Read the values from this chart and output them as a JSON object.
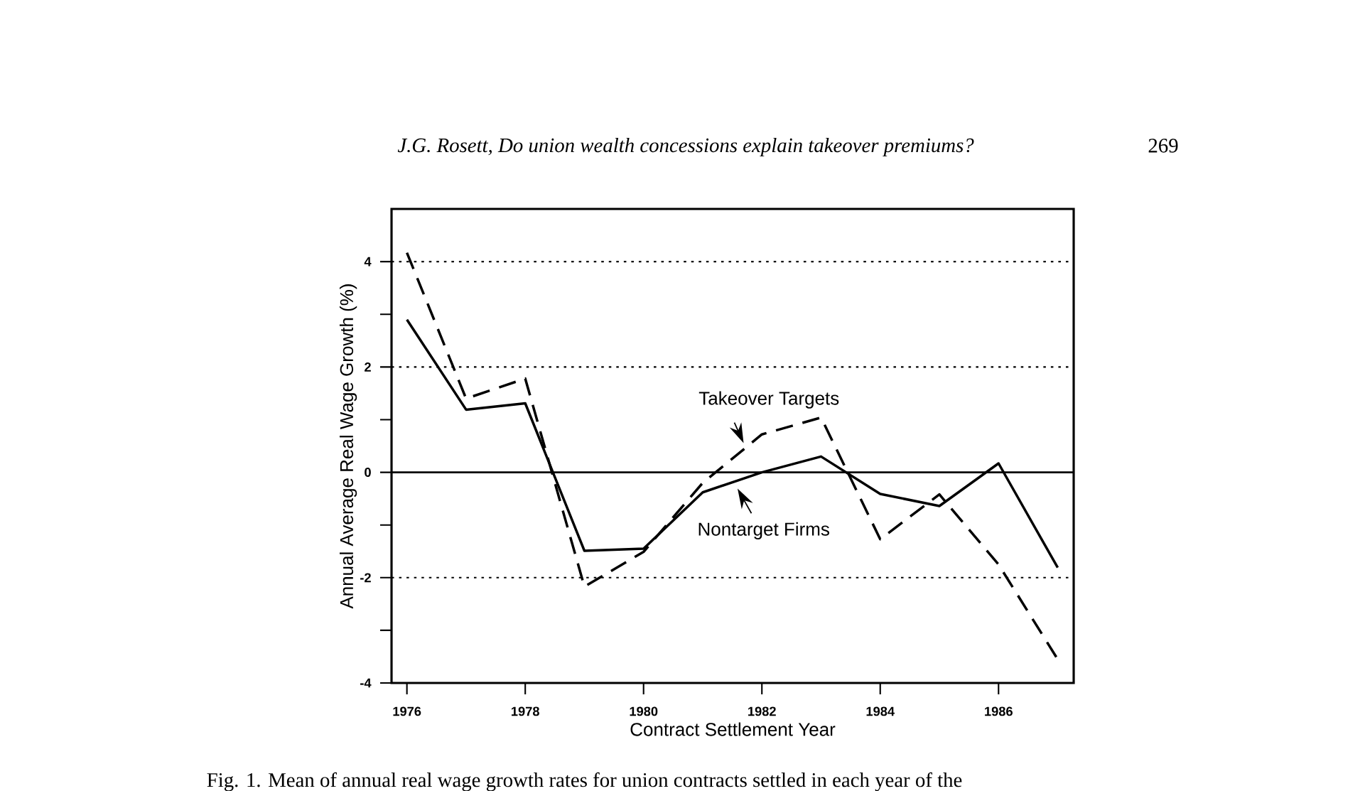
{
  "chart_data": {
    "type": "line",
    "title": "*J.G. Rosett, Do union wealth concessions explain takeover premiums?*",
    "xlabel": "Contract Settlement Year",
    "ylabel": "Annual Average Real Wage Growth (%)",
    "x": [
      1976,
      1977,
      1978,
      1979,
      1980,
      1981,
      1982,
      1983,
      1984,
      1985,
      1986,
      1987
    ],
    "series": [
      {
        "name": "Takeover Targets",
        "color": "#000000",
        "line_style": "dashed",
        "values": [
          4.17,
          1.4,
          1.78,
          -2.17,
          -1.51,
          -0.2,
          0.72,
          1.04,
          -1.27,
          -0.42,
          -1.75,
          -3.55
        ]
      },
      {
        "name": "Nontarget Firms",
        "color": "#000000",
        "line_style": "solid",
        "values": [
          2.9,
          1.19,
          1.31,
          -1.49,
          -1.45,
          -0.38,
          0.0,
          0.3,
          -0.41,
          -0.64,
          0.17,
          -1.81
        ]
      }
    ],
    "xlim": [
      1975.74,
      1987.27
    ],
    "ylim": [
      -4,
      5
    ],
    "xticks": [
      1976,
      1978,
      1980,
      1982,
      1984,
      1986
    ],
    "yticks": [
      -4,
      {
        "value": -3,
        "label": null
      },
      -2,
      {
        "value": -1,
        "label": null
      },
      0,
      {
        "value": 1,
        "label": null
      },
      2,
      {
        "value": 3,
        "label": null
      },
      4
    ],
    "ref_lines": [
      {
        "axis": "y",
        "value": 4,
        "line_style": "dotted"
      },
      {
        "axis": "y",
        "value": 2,
        "line_style": "dotted"
      },
      {
        "axis": "y",
        "value": 0,
        "line_style": "solid"
      },
      {
        "axis": "y",
        "value": -2,
        "line_style": "dotted"
      }
    ],
    "annotations": [
      "269",
      "Fig. 1. Mean of annual real wage growth rates for union contracts settled in each year of the"
    ],
    "grid": false,
    "marker": "none"
  }
}
